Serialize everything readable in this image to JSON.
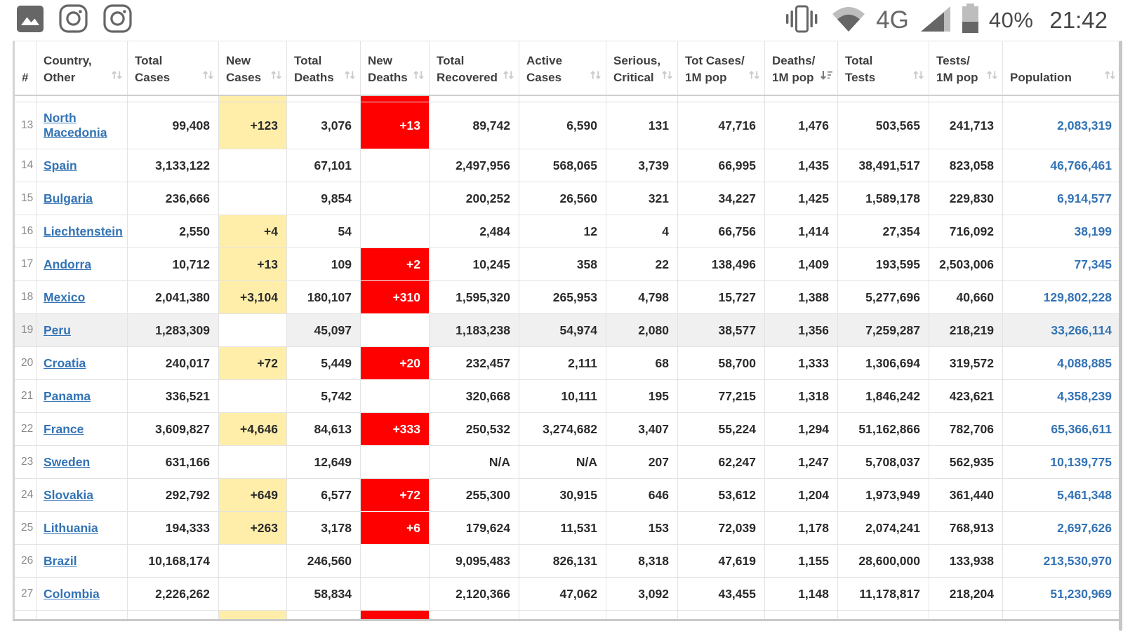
{
  "status_bar": {
    "time": "21:42",
    "battery_percent": "40%",
    "network_type": "4G",
    "left_icons": [
      "gallery-icon",
      "instagram-icon",
      "instagram-icon"
    ],
    "right_icons": [
      "vibrate-icon",
      "wifi-icon",
      "signal-icon",
      "battery-icon"
    ]
  },
  "colors": {
    "new_cases_bg": "#FFEEAA",
    "new_deaths_bg": "#FF0000",
    "link_blue": "#3373b5",
    "highlight_row_bg": "#f0f0f0"
  },
  "table": {
    "headers": [
      {
        "id": "rank",
        "lines": [
          "#"
        ],
        "sort": "none"
      },
      {
        "id": "country",
        "lines": [
          "Country,",
          "Other"
        ],
        "sort": "inactive"
      },
      {
        "id": "total-cases",
        "lines": [
          "Total",
          "Cases"
        ],
        "sort": "inactive"
      },
      {
        "id": "new-cases",
        "lines": [
          "New",
          "Cases"
        ],
        "sort": "inactive"
      },
      {
        "id": "total-deaths",
        "lines": [
          "Total",
          "Deaths"
        ],
        "sort": "inactive"
      },
      {
        "id": "new-deaths",
        "lines": [
          "New",
          "Deaths"
        ],
        "sort": "inactive"
      },
      {
        "id": "total-recovered",
        "lines": [
          "Total",
          "Recovered"
        ],
        "sort": "inactive"
      },
      {
        "id": "active-cases",
        "lines": [
          "Active",
          "Cases"
        ],
        "sort": "inactive"
      },
      {
        "id": "serious-critical",
        "lines": [
          "Serious,",
          "Critical"
        ],
        "sort": "inactive"
      },
      {
        "id": "cases-1m",
        "lines": [
          "Tot Cases/",
          "1M pop"
        ],
        "sort": "inactive"
      },
      {
        "id": "deaths-1m",
        "lines": [
          "Deaths/",
          "1M pop"
        ],
        "sort": "desc"
      },
      {
        "id": "total-tests",
        "lines": [
          "Total",
          "Tests"
        ],
        "sort": "inactive"
      },
      {
        "id": "tests-1m",
        "lines": [
          "Tests/",
          "1M pop"
        ],
        "sort": "inactive"
      },
      {
        "id": "population",
        "lines": [
          "Population"
        ],
        "sort": "inactive"
      }
    ],
    "partial_top_row": {
      "new_cases_filled": true,
      "new_deaths_filled": true
    },
    "partial_bottom_row": {
      "new_cases_filled": true,
      "new_deaths_filled": true
    },
    "rows": [
      {
        "rank": "13",
        "country": "North Macedonia",
        "total_cases": "99,408",
        "new_cases": "+123",
        "total_deaths": "3,076",
        "new_deaths": "+13",
        "total_recovered": "89,742",
        "active_cases": "6,590",
        "serious_critical": "131",
        "tot_cases_1m": "47,716",
        "deaths_1m": "1,476",
        "total_tests": "503,565",
        "tests_1m": "241,713",
        "population": "2,083,319",
        "highlight": false,
        "tall": true
      },
      {
        "rank": "14",
        "country": "Spain",
        "total_cases": "3,133,122",
        "new_cases": "",
        "total_deaths": "67,101",
        "new_deaths": "",
        "total_recovered": "2,497,956",
        "active_cases": "568,065",
        "serious_critical": "3,739",
        "tot_cases_1m": "66,995",
        "deaths_1m": "1,435",
        "total_tests": "38,491,517",
        "tests_1m": "823,058",
        "population": "46,766,461",
        "highlight": false,
        "tall": false
      },
      {
        "rank": "15",
        "country": "Bulgaria",
        "total_cases": "236,666",
        "new_cases": "",
        "total_deaths": "9,854",
        "new_deaths": "",
        "total_recovered": "200,252",
        "active_cases": "26,560",
        "serious_critical": "321",
        "tot_cases_1m": "34,227",
        "deaths_1m": "1,425",
        "total_tests": "1,589,178",
        "tests_1m": "229,830",
        "population": "6,914,577",
        "highlight": false,
        "tall": false
      },
      {
        "rank": "16",
        "country": "Liechtenstein",
        "total_cases": "2,550",
        "new_cases": "+4",
        "total_deaths": "54",
        "new_deaths": "",
        "total_recovered": "2,484",
        "active_cases": "12",
        "serious_critical": "4",
        "tot_cases_1m": "66,756",
        "deaths_1m": "1,414",
        "total_tests": "27,354",
        "tests_1m": "716,092",
        "population": "38,199",
        "highlight": false,
        "tall": false
      },
      {
        "rank": "17",
        "country": "Andorra",
        "total_cases": "10,712",
        "new_cases": "+13",
        "total_deaths": "109",
        "new_deaths": "+2",
        "total_recovered": "10,245",
        "active_cases": "358",
        "serious_critical": "22",
        "tot_cases_1m": "138,496",
        "deaths_1m": "1,409",
        "total_tests": "193,595",
        "tests_1m": "2,503,006",
        "population": "77,345",
        "highlight": false,
        "tall": false
      },
      {
        "rank": "18",
        "country": "Mexico",
        "total_cases": "2,041,380",
        "new_cases": "+3,104",
        "total_deaths": "180,107",
        "new_deaths": "+310",
        "total_recovered": "1,595,320",
        "active_cases": "265,953",
        "serious_critical": "4,798",
        "tot_cases_1m": "15,727",
        "deaths_1m": "1,388",
        "total_tests": "5,277,696",
        "tests_1m": "40,660",
        "population": "129,802,228",
        "highlight": false,
        "tall": false
      },
      {
        "rank": "19",
        "country": "Peru",
        "total_cases": "1,283,309",
        "new_cases": "",
        "total_deaths": "45,097",
        "new_deaths": "",
        "total_recovered": "1,183,238",
        "active_cases": "54,974",
        "serious_critical": "2,080",
        "tot_cases_1m": "38,577",
        "deaths_1m": "1,356",
        "total_tests": "7,259,287",
        "tests_1m": "218,219",
        "population": "33,266,114",
        "highlight": true,
        "tall": false
      },
      {
        "rank": "20",
        "country": "Croatia",
        "total_cases": "240,017",
        "new_cases": "+72",
        "total_deaths": "5,449",
        "new_deaths": "+20",
        "total_recovered": "232,457",
        "active_cases": "2,111",
        "serious_critical": "68",
        "tot_cases_1m": "58,700",
        "deaths_1m": "1,333",
        "total_tests": "1,306,694",
        "tests_1m": "319,572",
        "population": "4,088,885",
        "highlight": false,
        "tall": false
      },
      {
        "rank": "21",
        "country": "Panama",
        "total_cases": "336,521",
        "new_cases": "",
        "total_deaths": "5,742",
        "new_deaths": "",
        "total_recovered": "320,668",
        "active_cases": "10,111",
        "serious_critical": "195",
        "tot_cases_1m": "77,215",
        "deaths_1m": "1,318",
        "total_tests": "1,846,242",
        "tests_1m": "423,621",
        "population": "4,358,239",
        "highlight": false,
        "tall": false
      },
      {
        "rank": "22",
        "country": "France",
        "total_cases": "3,609,827",
        "new_cases": "+4,646",
        "total_deaths": "84,613",
        "new_deaths": "+333",
        "total_recovered": "250,532",
        "active_cases": "3,274,682",
        "serious_critical": "3,407",
        "tot_cases_1m": "55,224",
        "deaths_1m": "1,294",
        "total_tests": "51,162,866",
        "tests_1m": "782,706",
        "population": "65,366,611",
        "highlight": false,
        "tall": false
      },
      {
        "rank": "23",
        "country": "Sweden",
        "total_cases": "631,166",
        "new_cases": "",
        "total_deaths": "12,649",
        "new_deaths": "",
        "total_recovered": "N/A",
        "active_cases": "N/A",
        "serious_critical": "207",
        "tot_cases_1m": "62,247",
        "deaths_1m": "1,247",
        "total_tests": "5,708,037",
        "tests_1m": "562,935",
        "population": "10,139,775",
        "highlight": false,
        "tall": false
      },
      {
        "rank": "24",
        "country": "Slovakia",
        "total_cases": "292,792",
        "new_cases": "+649",
        "total_deaths": "6,577",
        "new_deaths": "+72",
        "total_recovered": "255,300",
        "active_cases": "30,915",
        "serious_critical": "646",
        "tot_cases_1m": "53,612",
        "deaths_1m": "1,204",
        "total_tests": "1,973,949",
        "tests_1m": "361,440",
        "population": "5,461,348",
        "highlight": false,
        "tall": false
      },
      {
        "rank": "25",
        "country": "Lithuania",
        "total_cases": "194,333",
        "new_cases": "+263",
        "total_deaths": "3,178",
        "new_deaths": "+6",
        "total_recovered": "179,624",
        "active_cases": "11,531",
        "serious_critical": "153",
        "tot_cases_1m": "72,039",
        "deaths_1m": "1,178",
        "total_tests": "2,074,241",
        "tests_1m": "768,913",
        "population": "2,697,626",
        "highlight": false,
        "tall": false
      },
      {
        "rank": "26",
        "country": "Brazil",
        "total_cases": "10,168,174",
        "new_cases": "",
        "total_deaths": "246,560",
        "new_deaths": "",
        "total_recovered": "9,095,483",
        "active_cases": "826,131",
        "serious_critical": "8,318",
        "tot_cases_1m": "47,619",
        "deaths_1m": "1,155",
        "total_tests": "28,600,000",
        "tests_1m": "133,938",
        "population": "213,530,970",
        "highlight": false,
        "tall": false
      },
      {
        "rank": "27",
        "country": "Colombia",
        "total_cases": "2,226,262",
        "new_cases": "",
        "total_deaths": "58,834",
        "new_deaths": "",
        "total_recovered": "2,120,366",
        "active_cases": "47,062",
        "serious_critical": "3,092",
        "tot_cases_1m": "43,455",
        "deaths_1m": "1,148",
        "total_tests": "11,178,817",
        "tests_1m": "218,204",
        "population": "51,230,969",
        "highlight": false,
        "tall": false
      }
    ]
  }
}
